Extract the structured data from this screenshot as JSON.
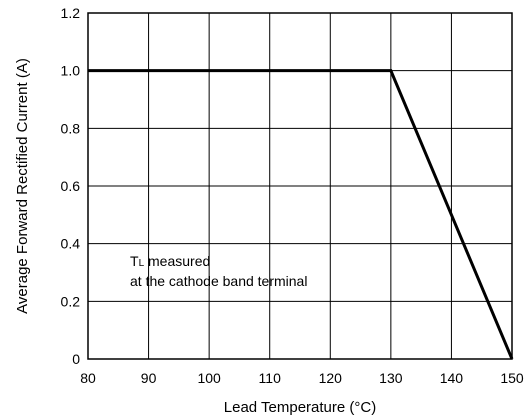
{
  "chart_data": {
    "type": "line",
    "xlabel": "Lead Temperature (°C)",
    "ylabel": "Average Forward Rectified Current (A)",
    "xlim": [
      80,
      150
    ],
    "ylim": [
      0,
      1.2
    ],
    "x_ticks": [
      "80",
      "90",
      "100",
      "110",
      "120",
      "130",
      "140",
      "150"
    ],
    "y_ticks": [
      "0",
      "0.2",
      "0.4",
      "0.6",
      "0.8",
      "1.0",
      "1.2"
    ],
    "grid": true,
    "series": [
      {
        "x": [
          80,
          130,
          150
        ],
        "y": [
          1.0,
          1.0,
          0
        ]
      }
    ],
    "annotation": {
      "line1_main": "T",
      "line1_sub": "L",
      "line1_rest": " measured",
      "line2": "at the cathode band terminal"
    }
  }
}
